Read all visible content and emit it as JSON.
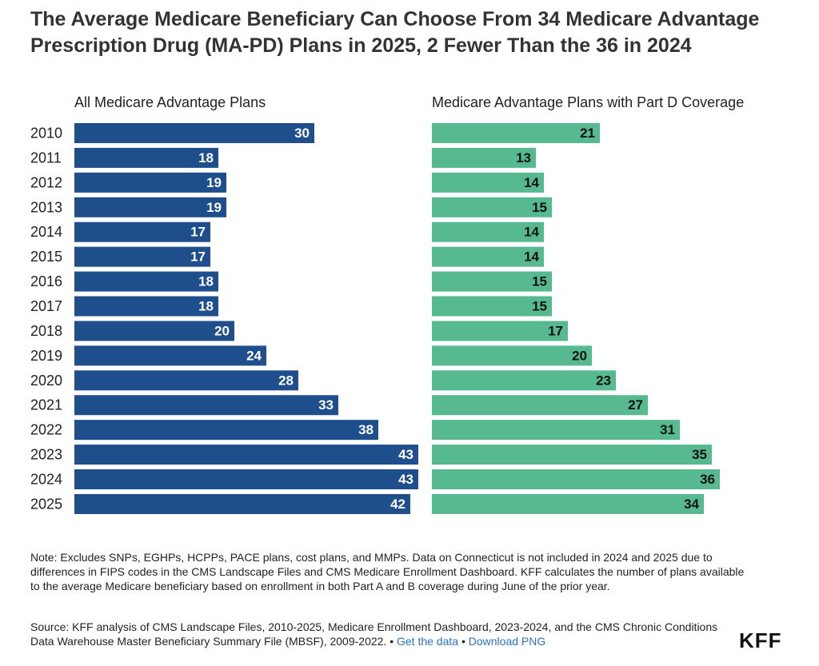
{
  "title": "The Average Medicare Beneficiary Can Choose From 34 Medicare Advantage Prescription Drug (MA-PD) Plans in 2025, 2 Fewer Than the 36 in 2024",
  "colors": {
    "left_bar": "#1f4e8c",
    "right_bar": "#56b98f",
    "left_label": "#ffffff",
    "right_label": "#111111"
  },
  "chart_data": {
    "type": "bar",
    "orientation": "horizontal",
    "categories": [
      "2010",
      "2011",
      "2012",
      "2013",
      "2014",
      "2015",
      "2016",
      "2017",
      "2018",
      "2019",
      "2020",
      "2021",
      "2022",
      "2023",
      "2024",
      "2025"
    ],
    "panels": [
      {
        "name": "All Medicare Advantage Plans",
        "values": [
          30,
          18,
          19,
          19,
          17,
          17,
          18,
          18,
          20,
          24,
          28,
          33,
          38,
          43,
          43,
          42
        ]
      },
      {
        "name": "Medicare Advantage Plans with Part D Coverage",
        "values": [
          21,
          13,
          14,
          15,
          14,
          14,
          15,
          15,
          17,
          20,
          23,
          27,
          31,
          35,
          36,
          34
        ]
      }
    ],
    "xlim": [
      0,
      43.5
    ],
    "grid": false,
    "legend": "none"
  },
  "note": "Note: Excludes SNPs, EGHPs, HCPPs, PACE plans, cost plans, and MMPs. Data on Connecticut is not included in 2024 and 2025 due to differences in FIPS codes in the CMS Landscape Files and CMS Medicare Enrollment Dashboard. KFF calculates the number of plans available to the average Medicare beneficiary based on enrollment in both Part A and B coverage during June of the prior year.",
  "source": {
    "text": "Source: KFF analysis of CMS Landscape Files, 2010-2025, Medicare Enrollment Dashboard, 2023-2024, and the CMS Chronic Conditions Data Warehouse Master Beneficiary Summary File (MBSF), 2009-2022. •",
    "sep": "•",
    "get_data": "Get the data",
    "download": "Download PNG"
  },
  "logo": "KFF"
}
